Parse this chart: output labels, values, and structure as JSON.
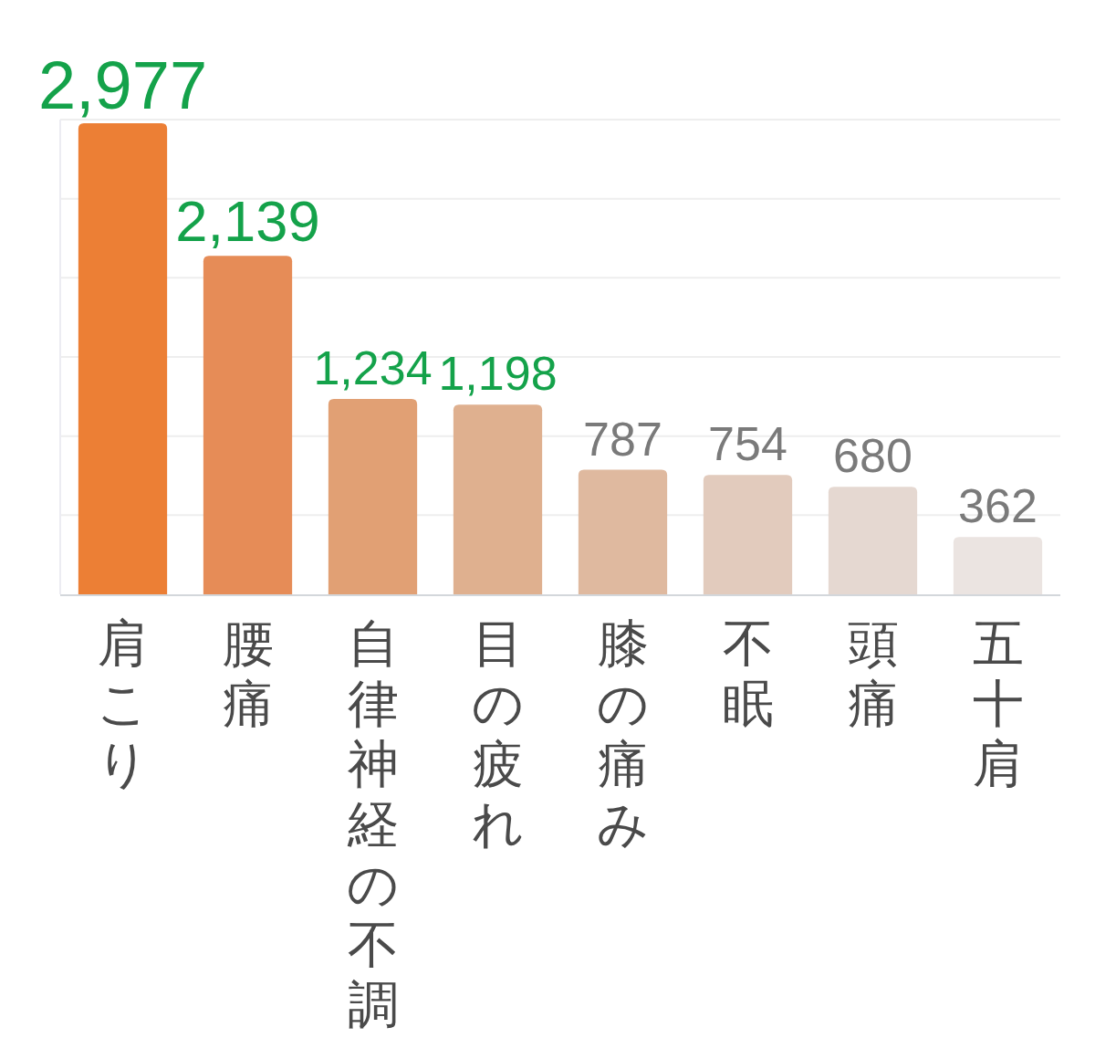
{
  "chart_data": {
    "type": "bar",
    "categories": [
      "肩こり",
      "腰痛",
      "自律神経の不調",
      "目の疲れ",
      "膝の痛み",
      "不眠",
      "頭痛",
      "五十肩"
    ],
    "values": [
      2977,
      2139,
      1234,
      1198,
      787,
      754,
      680,
      362
    ],
    "colors": [
      "#ec7f35",
      "#e68c57",
      "#e1a074",
      "#dfb08f",
      "#dfb99f",
      "#e2cbbd",
      "#e5d8d1",
      "#ebe4e1"
    ],
    "value_labels": [
      "2,977",
      "2,139",
      "1,234",
      "1,198",
      "787",
      "754",
      "680",
      "362"
    ],
    "ylim": [
      0,
      3000
    ],
    "yticks": [
      {
        "value": 0,
        "label": null
      },
      {
        "value": 500,
        "label": null
      },
      {
        "value": 1000,
        "label": null
      },
      {
        "value": 1500,
        "label": null
      },
      {
        "value": 2000,
        "label": null
      },
      {
        "value": 2500,
        "label": null
      },
      {
        "value": 3000,
        "label": null
      }
    ],
    "grid": "y",
    "tick_labels": "x"
  }
}
